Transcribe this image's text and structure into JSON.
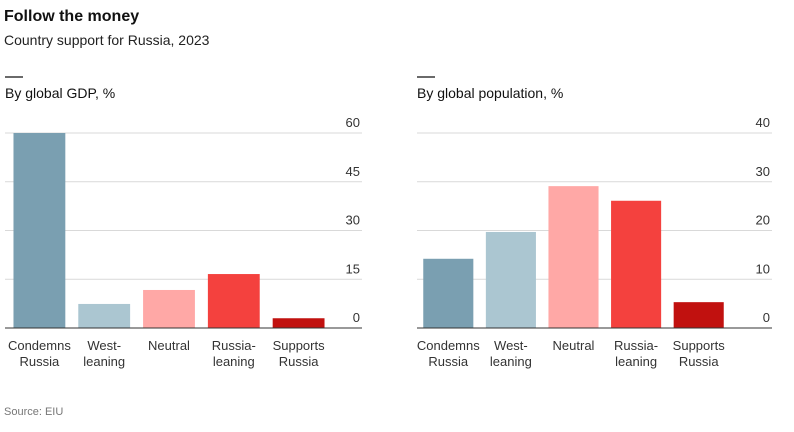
{
  "title": "Follow the money",
  "subtitle": "Country support for Russia, 2023",
  "source": "Source: EIU",
  "chart_data": [
    {
      "type": "bar",
      "title": "By global GDP, %",
      "categories": [
        [
          "Condemns",
          "Russia"
        ],
        [
          "West-",
          "leaning"
        ],
        [
          "Neutral"
        ],
        [
          "Russia-",
          "leaning"
        ],
        [
          "Supports",
          "Russia"
        ]
      ],
      "values": [
        60,
        7.4,
        11.7,
        16.6,
        3
      ],
      "colors": [
        "#7a9fb1",
        "#abc6d1",
        "#ffa8a6",
        "#f4413e",
        "#c1110f"
      ],
      "ylim": [
        0,
        60
      ],
      "yticks": [
        0,
        15,
        30,
        45,
        60
      ],
      "grid": true
    },
    {
      "type": "bar",
      "title": "By global population, %",
      "categories": [
        [
          "Condemns",
          "Russia"
        ],
        [
          "West-",
          "leaning"
        ],
        [
          "Neutral"
        ],
        [
          "Russia-",
          "leaning"
        ],
        [
          "Supports",
          "Russia"
        ]
      ],
      "values": [
        14.2,
        19.7,
        29.1,
        26.1,
        5.3
      ],
      "colors": [
        "#7a9fb1",
        "#abc6d1",
        "#ffa8a6",
        "#f4413e",
        "#c1110f"
      ],
      "ylim": [
        0,
        40
      ],
      "yticks": [
        0,
        10,
        20,
        30,
        40
      ],
      "grid": true
    }
  ]
}
